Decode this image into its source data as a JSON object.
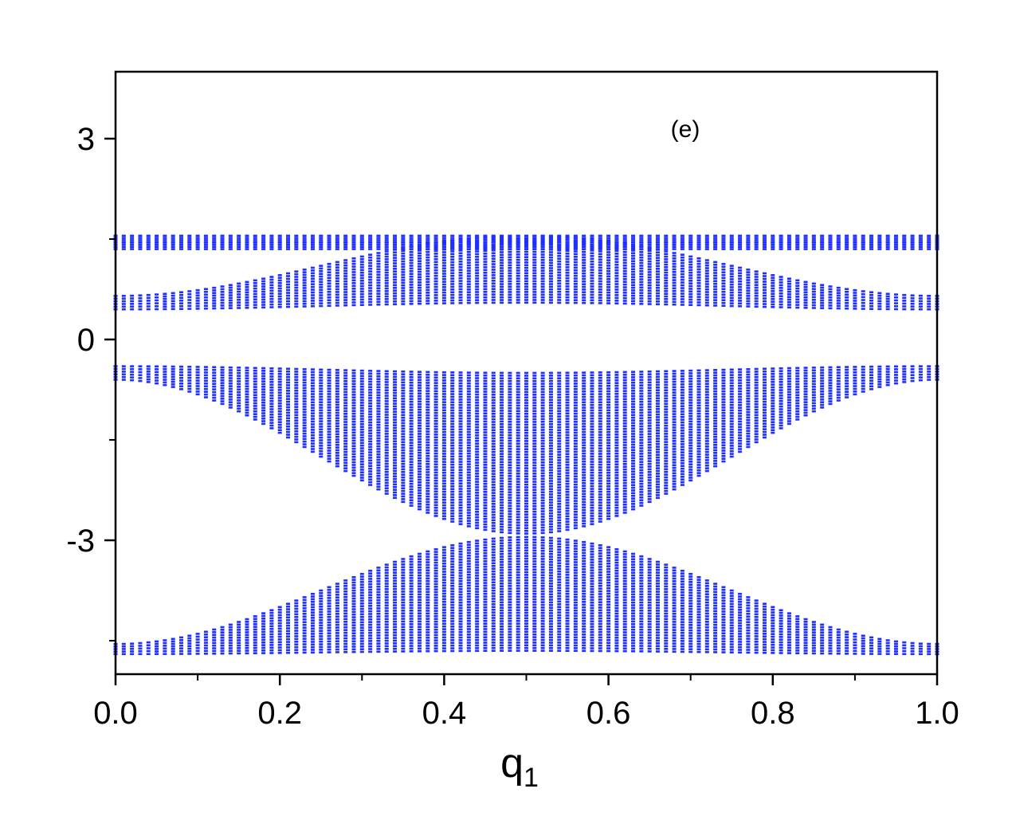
{
  "chart_data": {
    "type": "scatter",
    "title": "",
    "annotation": "(e)",
    "xlabel": {
      "main": "q",
      "subscript": "1"
    },
    "ylabel": "",
    "xlim": [
      0.0,
      1.0
    ],
    "ylim": [
      -5.0,
      4.0
    ],
    "x_ticks": [
      0.0,
      0.2,
      0.4,
      0.6,
      0.8,
      1.0
    ],
    "x_tick_labels": [
      "0.0",
      "0.2",
      "0.4",
      "0.6",
      "0.8",
      "1.0"
    ],
    "x_minor_ticks": [
      0.1,
      0.3,
      0.5,
      0.7,
      0.9
    ],
    "y_ticks": [
      3,
      0,
      -3
    ],
    "y_tick_labels": [
      "3",
      "0",
      "-3"
    ],
    "y_minor_ticks": [
      1.5,
      -1.5,
      -4.5
    ],
    "grid": false,
    "legend": "none",
    "marker_color": "#1f2fff",
    "q_sampling": {
      "start": 0.0,
      "stop": 1.0,
      "count": 101
    },
    "series": [
      {
        "band": "flat-upper",
        "q_profile": "constant",
        "y_min": 1.45,
        "y_max": 1.55
      },
      {
        "band": "flat-lower",
        "q_profile": "constant",
        "y_min": 1.35,
        "y_max": 1.45
      },
      {
        "band": "upper-dispersive",
        "q_profile": "cos2pi",
        "y_min_at_q0": 0.45,
        "y_max_at_q0": 0.65,
        "y_min_at_q05": 0.55,
        "y_max_at_q05": 1.55
      },
      {
        "band": "middle-dispersive",
        "q_profile": "cos2pi",
        "y_min_at_q0": -0.6,
        "y_max_at_q0": -0.4,
        "y_min_at_q05": -2.9,
        "y_max_at_q05": -0.5
      },
      {
        "band": "lower-dispersive",
        "q_profile": "cos2pi",
        "y_min_at_q0": -4.7,
        "y_max_at_q0": -4.55,
        "y_min_at_q05": -4.65,
        "y_max_at_q05": -2.95
      }
    ]
  }
}
